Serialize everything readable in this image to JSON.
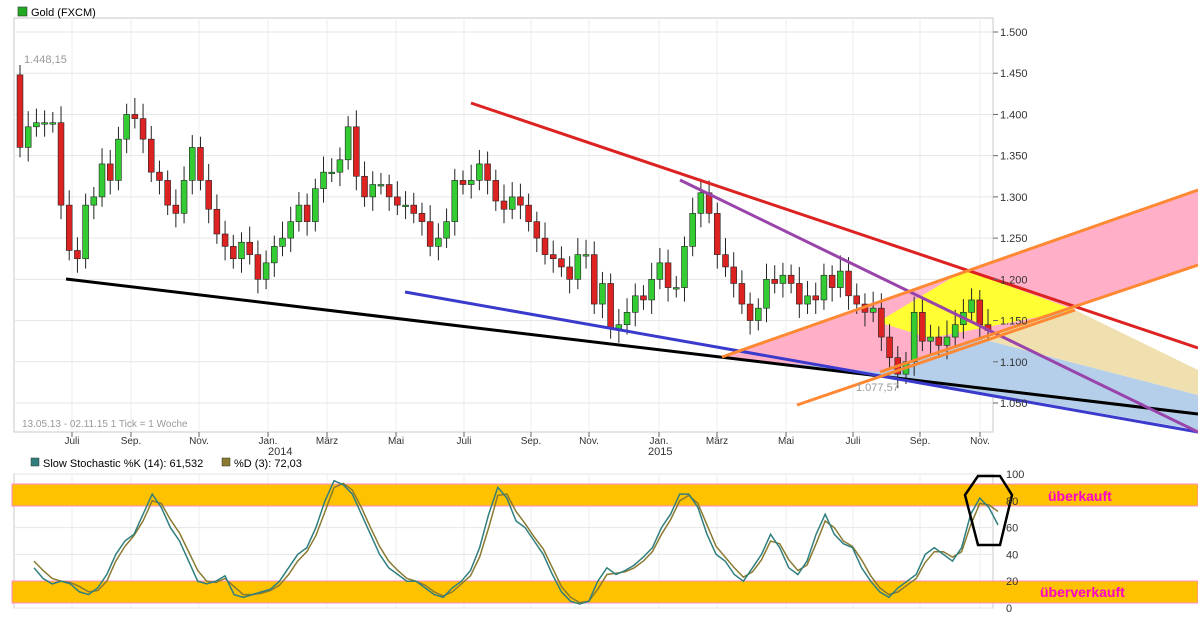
{
  "main_chart": {
    "legend_label": "Gold (FXCM)",
    "legend_color": "#22aa22",
    "range_info": "13.05.13 - 02.11.15   1 Tick = 1 Woche",
    "high_label": "1.448,15",
    "low_label": "1.077,57",
    "y_ticks": [
      "1.500",
      "1.450",
      "1.400",
      "1.350",
      "1.300",
      "1.250",
      "1.200",
      "1.150",
      "1.100",
      "1.050"
    ],
    "x_ticks": [
      "Juli",
      "Sep.",
      "Nov.",
      "Jan.",
      "März",
      "Mai",
      "Juli",
      "Sep.",
      "Nov.",
      "Jan.",
      "März",
      "Mai",
      "Juli",
      "Sep.",
      "Nov."
    ],
    "year_labels": [
      "2014",
      "2015"
    ],
    "up_color": "#33cc33",
    "down_color": "#dd2222"
  },
  "chart_data": [
    {
      "type": "candlestick",
      "title": "Gold (FXCM)",
      "interval": "1 Tick = 1 Woche",
      "period": "13.05.13 - 02.11.15",
      "ylim": [
        1015,
        1515
      ],
      "y_scale": "linear",
      "grid": true,
      "annotations": [
        "1.448,15",
        "1.077,57"
      ],
      "series": [
        {
          "closes": [
            1360,
            1385,
            1390,
            1390,
            1390,
            1290,
            1235,
            1225,
            1290,
            1300,
            1340,
            1320,
            1370,
            1400,
            1395,
            1370,
            1330,
            1320,
            1290,
            1280,
            1320,
            1360,
            1320,
            1285,
            1255,
            1240,
            1225,
            1245,
            1230,
            1200,
            1220,
            1240,
            1250,
            1270,
            1290,
            1270,
            1310,
            1330,
            1330,
            1345,
            1385,
            1325,
            1300,
            1315,
            1315,
            1300,
            1290,
            1290,
            1280,
            1270,
            1240,
            1250,
            1270,
            1320,
            1315,
            1320,
            1340,
            1320,
            1295,
            1285,
            1300,
            1290,
            1270,
            1250,
            1230,
            1225,
            1215,
            1200,
            1230,
            1230,
            1170,
            1195,
            1140,
            1145,
            1160,
            1180,
            1175,
            1200,
            1220,
            1190,
            1190,
            1240,
            1280,
            1305,
            1280,
            1230,
            1215,
            1195,
            1170,
            1150,
            1165,
            1200,
            1195,
            1205,
            1195,
            1170,
            1180,
            1175,
            1205,
            1190,
            1210,
            1180,
            1170,
            1160,
            1165,
            1130,
            1105,
            1085,
            1100,
            1160,
            1125,
            1130,
            1120,
            1130,
            1145,
            1160,
            1175,
            1145,
            1138
          ],
          "up_color": "#33cc33",
          "down_color": "#dd2222"
        }
      ]
    },
    {
      "type": "line",
      "title": "Slow Stochastic",
      "ylim": [
        0,
        100
      ],
      "series": [
        {
          "name": "Slow Stochastic %K (14): 61,532",
          "color": "#2f7f7f",
          "values": [
            30,
            22,
            18,
            20,
            18,
            12,
            10,
            15,
            25,
            40,
            50,
            55,
            70,
            85,
            75,
            60,
            50,
            35,
            20,
            18,
            20,
            24,
            10,
            8,
            10,
            12,
            14,
            20,
            30,
            40,
            45,
            60,
            80,
            95,
            92,
            85,
            70,
            55,
            40,
            30,
            25,
            20,
            20,
            15,
            10,
            8,
            15,
            20,
            28,
            45,
            70,
            90,
            82,
            65,
            60,
            50,
            40,
            25,
            12,
            5,
            3,
            5,
            20,
            30,
            25,
            28,
            32,
            38,
            45,
            60,
            70,
            85,
            85,
            75,
            55,
            40,
            35,
            25,
            20,
            30,
            40,
            55,
            45,
            30,
            25,
            35,
            55,
            70,
            55,
            48,
            45,
            30,
            20,
            12,
            8,
            15,
            20,
            25,
            40,
            45,
            40,
            35,
            45,
            70,
            82,
            75,
            62
          ]
        },
        {
          "name": "%D (3): 72,03",
          "color": "#8a7a30",
          "values": [
            35,
            28,
            22,
            20,
            19,
            16,
            12,
            13,
            20,
            35,
            46,
            54,
            65,
            80,
            78,
            66,
            56,
            42,
            28,
            20,
            19,
            22,
            16,
            10,
            10,
            11,
            13,
            17,
            25,
            35,
            42,
            54,
            72,
            90,
            93,
            88,
            75,
            60,
            46,
            35,
            28,
            22,
            20,
            17,
            12,
            9,
            12,
            18,
            24,
            38,
            60,
            84,
            85,
            72,
            63,
            53,
            44,
            30,
            16,
            8,
            4,
            5,
            14,
            25,
            26,
            27,
            30,
            35,
            42,
            55,
            66,
            80,
            84,
            78,
            62,
            46,
            38,
            30,
            23,
            27,
            36,
            50,
            48,
            36,
            28,
            32,
            48,
            65,
            60,
            50,
            46,
            36,
            24,
            15,
            10,
            12,
            17,
            22,
            34,
            42,
            42,
            38,
            42,
            62,
            78,
            77,
            72
          ]
        }
      ],
      "reference_levels": [
        20,
        80
      ],
      "zone_labels": [
        "überkauft",
        "überverkauft"
      ]
    }
  ],
  "stoch_chart": {
    "k_label": "Slow Stochastic %K (14): 61,532",
    "k_color": "#2f7f7f",
    "d_label": "%D (3): 72,03",
    "d_color": "#8a7a30",
    "overbought_label": "überkauft",
    "oversold_label": "überverkauft",
    "y_ticks": [
      "100",
      "80",
      "60",
      "40",
      "20",
      "0"
    ],
    "zone_color": "#ffc200",
    "label_color": "#ff00cc"
  }
}
